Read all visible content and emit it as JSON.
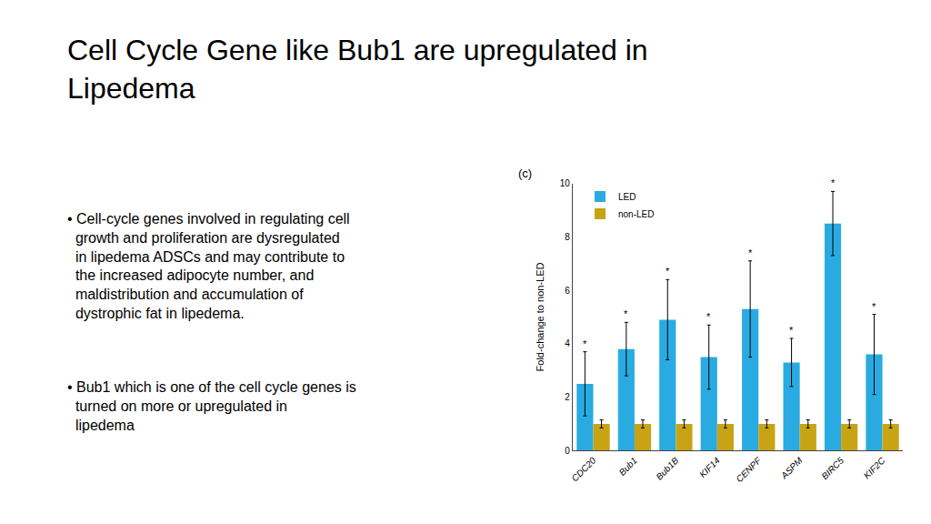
{
  "chart_data": {
    "type": "bar",
    "title": "Cell Cycle Gene like Bub1 are upregulated in\nLipedema",
    "ylabel": "Fold-change to non-LED",
    "categories": [
      "CDC20",
      "Bub1",
      "Bub1B",
      "KIF14",
      "CENPF",
      "ASPM",
      "BIRC5",
      "KIF2C"
    ],
    "series": [
      {
        "name": "LED",
        "color": "#29ABE2",
        "values": [
          2.5,
          3.8,
          4.9,
          3.5,
          5.3,
          3.3,
          8.5,
          3.6
        ],
        "errors": [
          1.2,
          1.0,
          1.5,
          1.2,
          1.8,
          0.9,
          1.2,
          1.5
        ]
      },
      {
        "name": "non-LED",
        "color": "#C8A415",
        "values": [
          1.0,
          1.0,
          1.0,
          1.0,
          1.0,
          1.0,
          1.0,
          1.0
        ],
        "errors": [
          0.15,
          0.15,
          0.15,
          0.15,
          0.15,
          0.15,
          0.15,
          0.15
        ]
      }
    ],
    "ylim": [
      0,
      10
    ],
    "yticks": [
      0,
      2,
      4,
      6,
      8,
      10
    ],
    "grid": false,
    "legend": "upper left",
    "annotations": [
      {
        "text": "(c)"
      },
      {
        "text": "• Cell-cycle genes involved in regulating cell\n  growth and proliferation are dysregulated\n  in lipedema ADSCs and may contribute to\n  the increased adipocyte number, and\n  maldistribution and accumulation of\n  dystrophic fat in lipedema."
      },
      {
        "text": "• Bub1 which is one of the cell cycle genes is\n  turned on more or upregulated in\n  lipedema"
      },
      {
        "text": "*",
        "x": "CDC20",
        "series": "LED"
      },
      {
        "text": "*",
        "x": "Bub1",
        "series": "LED"
      },
      {
        "text": "*",
        "x": "Bub1B",
        "series": "LED"
      },
      {
        "text": "*",
        "x": "KIF14",
        "series": "LED"
      },
      {
        "text": "*",
        "x": "CENPF",
        "series": "LED"
      },
      {
        "text": "*",
        "x": "ASPM",
        "series": "LED"
      },
      {
        "text": "*",
        "x": "BIRC5",
        "series": "LED"
      },
      {
        "text": "*",
        "x": "KIF2C",
        "series": "LED"
      }
    ]
  }
}
